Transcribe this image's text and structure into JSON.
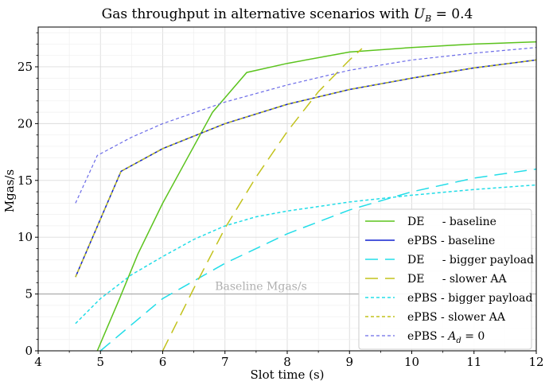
{
  "chart_data": {
    "type": "line",
    "title": "Gas throughput in alternative scenarios with U_B = 0.4",
    "title_parts": {
      "prefix": "Gas throughput in alternative scenarios with ",
      "var": "U",
      "sub": "B",
      "suffix": " = 0.4"
    },
    "xlabel": "Slot time (s)",
    "ylabel": "Mgas/s",
    "xlim": [
      4,
      12
    ],
    "ylim": [
      0,
      28.5
    ],
    "xticks": [
      4,
      5,
      6,
      7,
      8,
      9,
      10,
      11,
      12
    ],
    "yticks": [
      0,
      5,
      10,
      15,
      20,
      25
    ],
    "grid": true,
    "legend_position": "lower-right",
    "baseline": {
      "value": 5,
      "label": "Baseline Mgas/s",
      "color": "#a6a6a6"
    },
    "series": [
      {
        "name": "DE     - baseline",
        "color": "#5bc31d",
        "dash": "solid",
        "width": 1.5,
        "x": [
          4.95,
          5.3,
          5.6,
          6.0,
          6.4,
          6.8,
          7.35,
          8.0,
          9.0,
          10.0,
          11.0,
          12.0
        ],
        "y": [
          0,
          4.5,
          8.5,
          13,
          17,
          21,
          24.5,
          25.3,
          26.3,
          26.7,
          27.0,
          27.2
        ]
      },
      {
        "name": "ePBS - baseline",
        "color": "#1020d0",
        "dash": "solid",
        "width": 1.5,
        "x": [
          4.6,
          5.0,
          5.33,
          6.0,
          7.0,
          8.0,
          9.0,
          10.0,
          11.0,
          12.0
        ],
        "y": [
          6.5,
          11.6,
          15.8,
          17.8,
          20.0,
          21.7,
          23.0,
          24.0,
          24.9,
          25.6
        ]
      },
      {
        "name": "DE     - bigger payload",
        "color": "#23dde8",
        "dash": "long",
        "width": 1.5,
        "x": [
          5.0,
          6.0,
          7.0,
          8.0,
          9.0,
          10.0,
          11.0,
          12.0
        ],
        "y": [
          0,
          4.6,
          7.7,
          10.3,
          12.4,
          14.0,
          15.2,
          16.0
        ]
      },
      {
        "name": "DE     - slower AA",
        "color": "#c2c21c",
        "dash": "long",
        "width": 1.5,
        "x": [
          6.0,
          6.5,
          7.0,
          7.5,
          8.0,
          8.5,
          9.0,
          9.2
        ],
        "y": [
          0,
          5.5,
          10.8,
          15.3,
          19.3,
          22.8,
          25.6,
          26.6
        ]
      },
      {
        "name": "ePBS - bigger payload",
        "color": "#23dde8",
        "dash": "dotted",
        "width": 1.5,
        "x": [
          4.6,
          5.0,
          5.5,
          6.0,
          6.5,
          7.0,
          7.5,
          8.0,
          9.0,
          10.0,
          11.0,
          12.0
        ],
        "y": [
          2.4,
          4.6,
          6.7,
          8.3,
          9.8,
          11.0,
          11.8,
          12.3,
          13.1,
          13.7,
          14.2,
          14.6
        ]
      },
      {
        "name": "ePBS - slower AA",
        "color": "#c2c21c",
        "dash": "dotted",
        "width": 1.5,
        "x": [
          4.6,
          5.0,
          5.33,
          6.0,
          7.0,
          8.0,
          9.0,
          10.0,
          11.0,
          12.0
        ],
        "y": [
          6.5,
          11.6,
          15.8,
          17.8,
          20.0,
          21.7,
          23.0,
          24.0,
          24.9,
          25.6
        ]
      },
      {
        "name": "ePBS - A_d = 0",
        "color": "#6b6be8",
        "dash": "dotted",
        "width": 1.2,
        "x": [
          4.6,
          4.95,
          5.5,
          6.0,
          7.0,
          8.0,
          9.0,
          10.0,
          11.0,
          12.0
        ],
        "y": [
          13.0,
          17.2,
          18.8,
          20.0,
          21.9,
          23.4,
          24.7,
          25.6,
          26.2,
          26.7
        ]
      }
    ],
    "legend": [
      {
        "name": "DE     - baseline"
      },
      {
        "name": "ePBS - baseline"
      },
      {
        "name": "DE     - bigger payload"
      },
      {
        "name": "DE     - slower AA"
      },
      {
        "name": "ePBS - bigger payload"
      },
      {
        "name": "ePBS - slower AA"
      },
      {
        "name": "ePBS - ",
        "var": "A",
        "sub": "d",
        "suffix": " = 0"
      }
    ]
  }
}
